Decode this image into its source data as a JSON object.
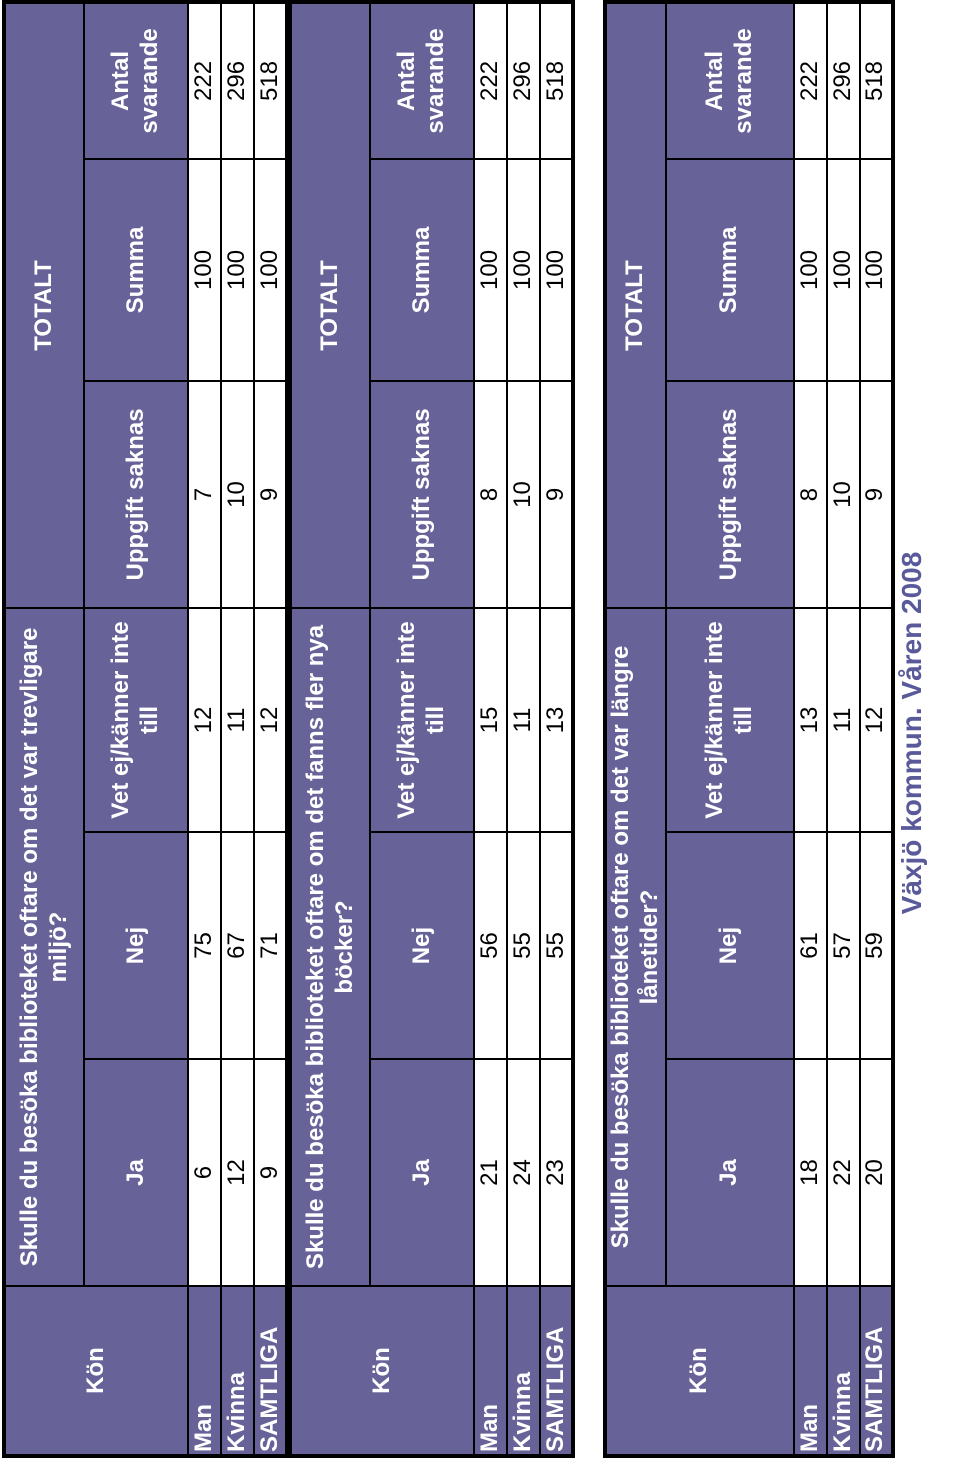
{
  "title": "Växjö kommun. Våren 2008",
  "col_headers": [
    "Ja",
    "Nej",
    "Vet ej/känner inte till",
    "Uppgift saknas",
    "Summa",
    "Antal svarande"
  ],
  "kon_label": "Kön",
  "totalt_label": "TOTALT",
  "tables": [
    {
      "question": "Skulle du besöka biblioteket oftare om det var trevligare miljö?",
      "rows": [
        {
          "label": "Man",
          "values": [
            "6",
            "75",
            "12",
            "7",
            "100",
            "222"
          ]
        },
        {
          "label": "Kvinna",
          "values": [
            "12",
            "67",
            "11",
            "10",
            "100",
            "296"
          ]
        },
        {
          "label": "SAMTLIGA",
          "values": [
            "9",
            "71",
            "12",
            "9",
            "100",
            "518"
          ]
        }
      ]
    },
    {
      "question": "Skulle du besöka biblioteket oftare om det fanns fler nya böcker?",
      "rows": [
        {
          "label": "Man",
          "values": [
            "21",
            "56",
            "15",
            "8",
            "100",
            "222"
          ]
        },
        {
          "label": "Kvinna",
          "values": [
            "24",
            "55",
            "11",
            "10",
            "100",
            "296"
          ]
        },
        {
          "label": "SAMTLIGA",
          "values": [
            "23",
            "55",
            "13",
            "9",
            "100",
            "518"
          ]
        }
      ]
    },
    {
      "question": "Skulle du besöka biblioteket oftare om det var längre lånetider?",
      "rows": [
        {
          "label": "Man",
          "values": [
            "18",
            "61",
            "13",
            "8",
            "100",
            "222"
          ]
        },
        {
          "label": "Kvinna",
          "values": [
            "22",
            "57",
            "11",
            "10",
            "100",
            "296"
          ]
        },
        {
          "label": "SAMTLIGA",
          "values": [
            "20",
            "59",
            "12",
            "9",
            "100",
            "518"
          ]
        }
      ]
    }
  ]
}
